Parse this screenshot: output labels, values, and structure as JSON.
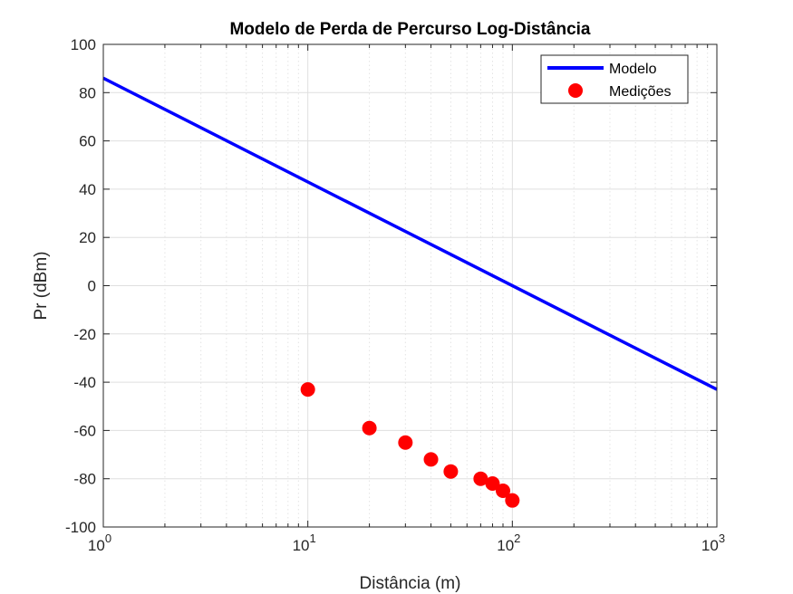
{
  "chart_data": {
    "type": "line",
    "title": "Modelo de Perda de Percurso Log-Distância",
    "xlabel": "Distância (m)",
    "ylabel": "Pr (dBm)",
    "xscale": "log",
    "xlim": [
      1,
      1000
    ],
    "ylim": [
      -100,
      100
    ],
    "yticks": [
      -100,
      -80,
      -60,
      -40,
      -20,
      0,
      20,
      40,
      60,
      80,
      100
    ],
    "xticks": [
      {
        "value": 1,
        "base": "10",
        "exp": "0"
      },
      {
        "value": 10,
        "base": "10",
        "exp": "1"
      },
      {
        "value": 100,
        "base": "10",
        "exp": "2"
      },
      {
        "value": 1000,
        "base": "10",
        "exp": "3"
      }
    ],
    "grid": true,
    "minor_grid": true,
    "legend_position": "top-right",
    "series": [
      {
        "name": "Modelo",
        "kind": "line",
        "color": "#0000ff",
        "x": [
          1,
          1000
        ],
        "y": [
          86,
          -43
        ]
      },
      {
        "name": "Medições",
        "kind": "scatter",
        "color": "#ff0000",
        "x": [
          10,
          20,
          30,
          40,
          50,
          70,
          80,
          90,
          100
        ],
        "y": [
          -43,
          -59,
          -65,
          -72,
          -77,
          -80,
          -82,
          -85,
          -89
        ]
      }
    ]
  }
}
